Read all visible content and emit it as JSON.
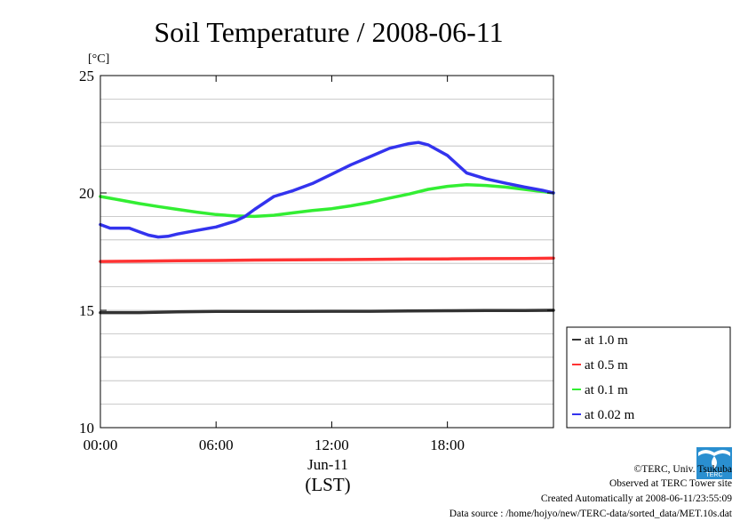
{
  "chart_data": {
    "type": "line",
    "title": "Soil Temperature / 2008-06-11",
    "ylabel": "[°C]",
    "xlabel": "(LST)",
    "x_date_label": "Jun-11",
    "ylim": [
      10,
      25
    ],
    "yticks": [
      10,
      15,
      20,
      25
    ],
    "xlim_hours": [
      0,
      23.5
    ],
    "xticks": [
      0,
      6,
      12,
      18
    ],
    "xtick_labels": [
      "00:00",
      "06:00",
      "12:00",
      "18:00"
    ],
    "grid": true,
    "legend_position": "right",
    "legend": [
      "at 1.0 m",
      "at 0.5 m",
      "at 0.1 m",
      "at 0.02 m"
    ],
    "series": [
      {
        "name": "at 1.0 m",
        "color": "#333333",
        "x": [
          0,
          2,
          4,
          6,
          8,
          10,
          12,
          14,
          16,
          18,
          20,
          22,
          23.5
        ],
        "values": [
          14.9,
          14.9,
          14.93,
          14.95,
          14.95,
          14.95,
          14.96,
          14.96,
          14.97,
          14.98,
          14.99,
          14.99,
          15.0
        ]
      },
      {
        "name": "at 0.5 m",
        "color": "#ff3333",
        "x": [
          0,
          2,
          4,
          6,
          8,
          10,
          12,
          14,
          16,
          18,
          20,
          22,
          23.5
        ],
        "values": [
          17.08,
          17.09,
          17.11,
          17.12,
          17.14,
          17.15,
          17.16,
          17.17,
          17.18,
          17.19,
          17.2,
          17.21,
          17.22
        ]
      },
      {
        "name": "at 0.1 m",
        "color": "#33ee33",
        "x": [
          0,
          1,
          2,
          3,
          4,
          5,
          6,
          7,
          8,
          9,
          10,
          11,
          12,
          13,
          14,
          15,
          16,
          17,
          18,
          19,
          20,
          21,
          22,
          23,
          23.5
        ],
        "values": [
          19.85,
          19.7,
          19.55,
          19.42,
          19.3,
          19.18,
          19.08,
          19.02,
          19.0,
          19.05,
          19.15,
          19.25,
          19.33,
          19.45,
          19.6,
          19.78,
          19.95,
          20.15,
          20.28,
          20.35,
          20.32,
          20.25,
          20.15,
          20.05,
          20.0
        ]
      },
      {
        "name": "at 0.02 m",
        "color": "#3333ee",
        "x": [
          0,
          0.5,
          1,
          1.5,
          2,
          2.5,
          3,
          3.5,
          4,
          5,
          6,
          7,
          7.5,
          8,
          9,
          10,
          11,
          12,
          13,
          14,
          15,
          16,
          16.5,
          17,
          18,
          19,
          20,
          21,
          22,
          23,
          23.5
        ],
        "values": [
          18.65,
          18.5,
          18.5,
          18.5,
          18.35,
          18.2,
          18.12,
          18.15,
          18.25,
          18.4,
          18.55,
          18.8,
          19.0,
          19.3,
          19.85,
          20.1,
          20.4,
          20.8,
          21.2,
          21.55,
          21.9,
          22.1,
          22.15,
          22.05,
          21.6,
          20.85,
          20.6,
          20.42,
          20.25,
          20.1,
          20.0
        ]
      }
    ]
  },
  "footer": {
    "copyright": "©TERC, Univ. Tsukuba",
    "observed": "Observed at TERC Tower site",
    "created": "Created Automatically at 2008-06-11/23:55:09",
    "source": "Data source : /home/hojyo/new/TERC-data/sorted_data/MET.10s.dat"
  },
  "logo": {
    "text": "TERC",
    "color": "#2a8fd0"
  }
}
